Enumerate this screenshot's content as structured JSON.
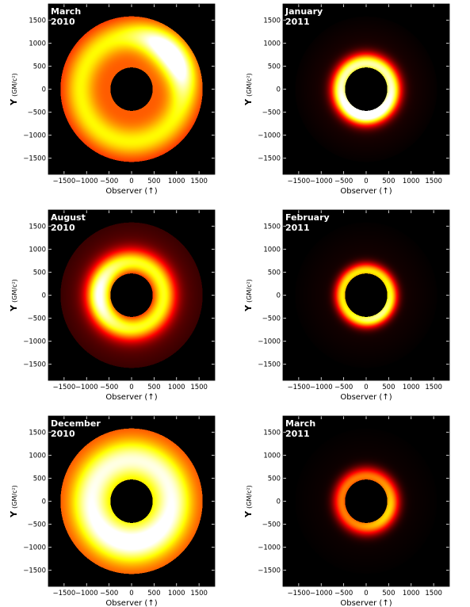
{
  "chart_data": [
    {
      "type": "heatmap",
      "subtype": "accretion-disk intensity map",
      "panel_label": [
        "March",
        "2010"
      ],
      "xlabel": "Observer (↑)",
      "ylabel": "Y",
      "ylabel_unit": "(GM/c²)",
      "xlim": [
        -1850,
        1850
      ],
      "ylim": [
        -1850,
        1850
      ],
      "xticks": [
        -1500,
        -1000,
        -500,
        0,
        500,
        1000,
        1500
      ],
      "yticks": [
        -1500,
        -1000,
        -500,
        0,
        500,
        1000,
        1500
      ],
      "xtick_labels": [
        "−1500",
        "−1000",
        "−500",
        "0",
        "500",
        "1000",
        "1500"
      ],
      "ytick_labels": [
        "−1500",
        "−1000",
        "−500",
        "0",
        "500",
        "1000",
        "1500"
      ],
      "ring": {
        "inner_radius": 470,
        "outer_radius": 1580,
        "peak_radius": 1150,
        "peak_width": 230,
        "base_intensity": 0.5,
        "peak_intensity": 0.8,
        "falloff": 0.2,
        "hotspot": {
          "angle_deg": 40,
          "radius": 1150,
          "spread_deg": 28,
          "intensity": 0.45
        }
      }
    },
    {
      "type": "heatmap",
      "subtype": "accretion-disk intensity map",
      "panel_label": [
        "January",
        "2011"
      ],
      "xlabel": "Observer (↑)",
      "ylabel": "Y",
      "ylabel_unit": "(GM/c²)",
      "xlim": [
        -1850,
        1850
      ],
      "ylim": [
        -1850,
        1850
      ],
      "xticks": [
        -1500,
        -1000,
        -500,
        0,
        500,
        1000,
        1500
      ],
      "yticks": [
        -1500,
        -1000,
        -500,
        0,
        500,
        1000,
        1500
      ],
      "xtick_labels": [
        "−1500",
        "−1000",
        "−500",
        "0",
        "500",
        "1000",
        "1500"
      ],
      "ytick_labels": [
        "−1500",
        "−1000",
        "−500",
        "0",
        "500",
        "1000",
        "1500"
      ],
      "ring": {
        "inner_radius": 470,
        "outer_radius": 1580,
        "peak_radius": 560,
        "peak_width": 150,
        "base_intensity": 0.06,
        "peak_intensity": 0.92,
        "falloff": 0.9,
        "hotspot": {
          "angle_deg": 270,
          "radius": 560,
          "spread_deg": 50,
          "intensity": 0.25
        }
      }
    },
    {
      "type": "heatmap",
      "subtype": "accretion-disk intensity map",
      "panel_label": [
        "August",
        "2010"
      ],
      "xlabel": "Observer (↑)",
      "ylabel": "Y",
      "ylabel_unit": "(GM/c²)",
      "xlim": [
        -1850,
        1850
      ],
      "ylim": [
        -1850,
        1850
      ],
      "xticks": [
        -1500,
        -1000,
        -500,
        0,
        500,
        1000,
        1500
      ],
      "yticks": [
        -1500,
        -1000,
        -500,
        0,
        500,
        1000,
        1500
      ],
      "xtick_labels": [
        "−1500",
        "−1000",
        "−500",
        "0",
        "500",
        "1000",
        "1500"
      ],
      "ytick_labels": [
        "−1500",
        "−1000",
        "−500",
        "0",
        "500",
        "1000",
        "1500"
      ],
      "ring": {
        "inner_radius": 470,
        "outer_radius": 1580,
        "peak_radius": 720,
        "peak_width": 190,
        "base_intensity": 0.2,
        "peak_intensity": 0.8,
        "falloff": 0.6,
        "hotspot": {
          "angle_deg": 180,
          "radius": 720,
          "spread_deg": 40,
          "intensity": 0.25
        }
      }
    },
    {
      "type": "heatmap",
      "subtype": "accretion-disk intensity map",
      "panel_label": [
        "February",
        "2011"
      ],
      "xlabel": "Observer (↑)",
      "ylabel": "Y",
      "ylabel_unit": "(GM/c²)",
      "xlim": [
        -1850,
        1850
      ],
      "ylim": [
        -1850,
        1850
      ],
      "xticks": [
        -1500,
        -1000,
        -500,
        0,
        500,
        1000,
        1500
      ],
      "yticks": [
        -1500,
        -1000,
        -500,
        0,
        500,
        1000,
        1500
      ],
      "xtick_labels": [
        "−1500",
        "−1000",
        "−500",
        "0",
        "500",
        "1000",
        "1500"
      ],
      "ytick_labels": [
        "−1500",
        "−1000",
        "−500",
        "0",
        "500",
        "1000",
        "1500"
      ],
      "ring": {
        "inner_radius": 470,
        "outer_radius": 1580,
        "peak_radius": 530,
        "peak_width": 120,
        "base_intensity": 0.04,
        "peak_intensity": 0.72,
        "falloff": 0.9,
        "hotspot": {
          "angle_deg": 300,
          "radius": 530,
          "spread_deg": 45,
          "intensity": 0.18
        }
      }
    },
    {
      "type": "heatmap",
      "subtype": "accretion-disk intensity map",
      "panel_label": [
        "December",
        "2010"
      ],
      "xlabel": "Observer (↑)",
      "ylabel": "Y",
      "ylabel_unit": "(GM/c²)",
      "xlim": [
        -1850,
        1850
      ],
      "ylim": [
        -1850,
        1850
      ],
      "xticks": [
        -1500,
        -1000,
        -500,
        0,
        500,
        1000,
        1500
      ],
      "yticks": [
        -1500,
        -1000,
        -500,
        0,
        500,
        1000,
        1500
      ],
      "xtick_labels": [
        "−1500",
        "−1000",
        "−500",
        "0",
        "500",
        "1000",
        "1500"
      ],
      "ytick_labels": [
        "−1500",
        "−1000",
        "−500",
        "0",
        "500",
        "1000",
        "1500"
      ],
      "ring": {
        "inner_radius": 470,
        "outer_radius": 1580,
        "peak_radius": 900,
        "peak_width": 300,
        "base_intensity": 0.55,
        "peak_intensity": 1.0,
        "falloff": 0.15,
        "hotspot": {
          "angle_deg": 270,
          "radius": 900,
          "spread_deg": 60,
          "intensity": 0.1
        }
      }
    },
    {
      "type": "heatmap",
      "subtype": "accretion-disk intensity map",
      "panel_label": [
        "March",
        "2011"
      ],
      "xlabel": "Observer (↑)",
      "ylabel": "Y",
      "ylabel_unit": "(GM/c²)",
      "xlim": [
        -1850,
        1850
      ],
      "ylim": [
        -1850,
        1850
      ],
      "xticks": [
        -1500,
        -1000,
        -500,
        0,
        500,
        1000,
        1500
      ],
      "yticks": [
        -1500,
        -1000,
        -500,
        0,
        500,
        1000,
        1500
      ],
      "xtick_labels": [
        "−1500",
        "−1000",
        "−500",
        "0",
        "500",
        "1000",
        "1500"
      ],
      "ytick_labels": [
        "−1500",
        "−1000",
        "−500",
        "0",
        "500",
        "1000",
        "1500"
      ],
      "ring": {
        "inner_radius": 470,
        "outer_radius": 1580,
        "peak_radius": 540,
        "peak_width": 140,
        "base_intensity": 0.03,
        "peak_intensity": 0.55,
        "falloff": 0.9,
        "hotspot": {
          "angle_deg": 330,
          "radius": 540,
          "spread_deg": 45,
          "intensity": 0.15
        }
      }
    }
  ],
  "colors": {
    "colormap": "hot",
    "background": "#000000",
    "panel_label_color": "#ffffff",
    "axis_text_color": "#000000",
    "figure_background": "#ffffff"
  }
}
